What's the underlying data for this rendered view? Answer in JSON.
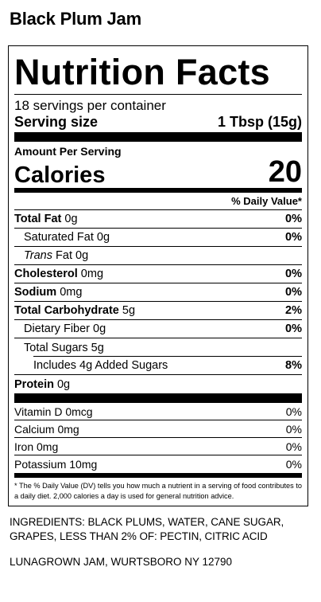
{
  "product": {
    "title": "Black Plum Jam"
  },
  "label": {
    "heading": "Nutrition Facts",
    "servings_per_container": "18 servings per container",
    "serving_size_label": "Serving size",
    "serving_size_value": "1 Tbsp (15g)",
    "amount_per_serving": "Amount Per Serving",
    "calories_label": "Calories",
    "calories_value": "20",
    "daily_value_header": "% Daily Value*",
    "nutrients": [
      {
        "name": "Total Fat",
        "amount": "0g",
        "dv": "0%"
      },
      {
        "name": "Saturated Fat",
        "amount": "0g",
        "dv": "0%"
      },
      {
        "name": "Trans",
        "amount": "Fat 0g",
        "dv": ""
      },
      {
        "name": "Cholesterol",
        "amount": "0mg",
        "dv": "0%"
      },
      {
        "name": "Sodium",
        "amount": "0mg",
        "dv": "0%"
      },
      {
        "name": "Total Carbohydrate",
        "amount": "5g",
        "dv": "2%"
      },
      {
        "name": "Dietary Fiber",
        "amount": "0g",
        "dv": "0%"
      },
      {
        "name": "Total Sugars",
        "amount": "5g",
        "dv": ""
      },
      {
        "name": "Includes 4g Added Sugars",
        "amount": "",
        "dv": "8%"
      },
      {
        "name": "Protein",
        "amount": "0g",
        "dv": ""
      }
    ],
    "vitamins": [
      {
        "name": "Vitamin D 0mcg",
        "dv": "0%"
      },
      {
        "name": "Calcium 0mg",
        "dv": "0%"
      },
      {
        "name": "Iron 0mg",
        "dv": "0%"
      },
      {
        "name": "Potassium 10mg",
        "dv": "0%"
      }
    ],
    "footnote": "* The % Daily Value (DV) tells you how much a nutrient in a serving of food contributes to a daily diet. 2,000 calories a day is used for general nutrition advice."
  },
  "ingredients": "INGREDIENTS: BLACK PLUMS, WATER, CANE SUGAR, GRAPES, LESS THAN 2% OF: PECTIN, CITRIC ACID",
  "manufacturer": "LUNAGROWN JAM, WURTSBORO NY 12790"
}
